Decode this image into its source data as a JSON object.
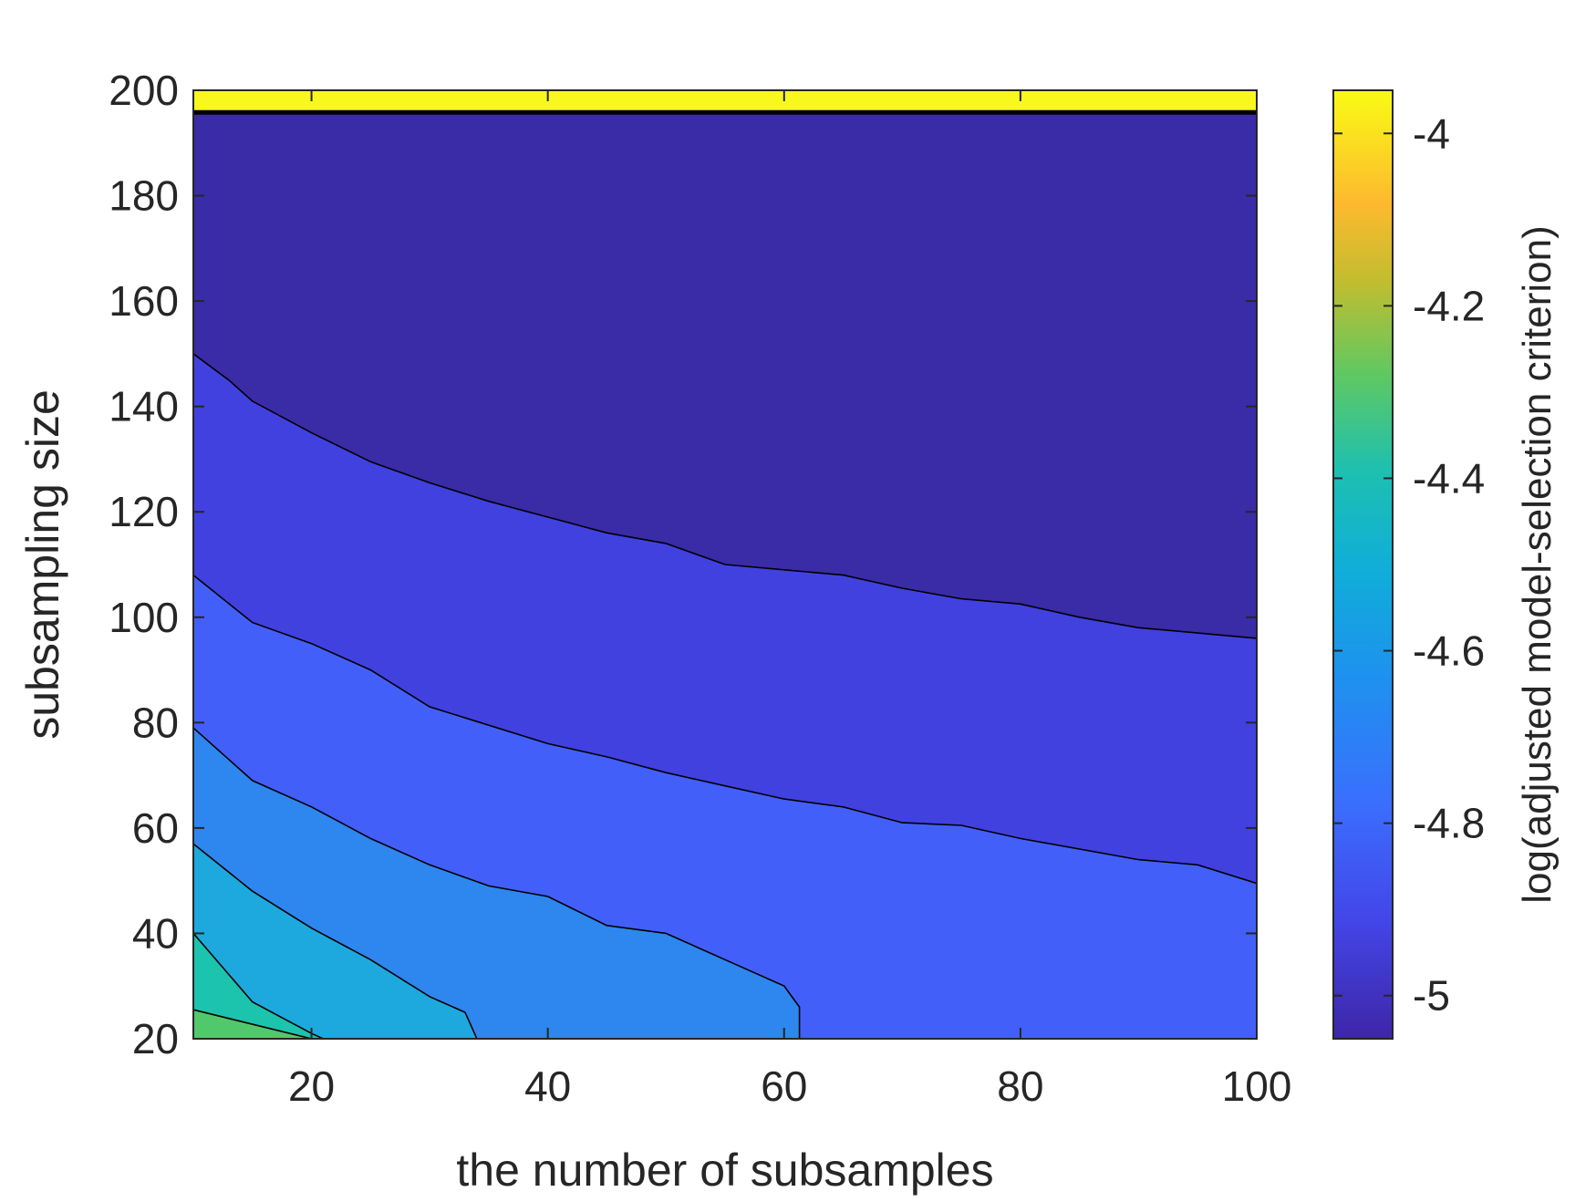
{
  "chart_data": {
    "type": "contour",
    "title": "",
    "xlabel": "the number of subsamples",
    "ylabel": "subsampling size",
    "colorbar_label": "log(adjusted model-selection criterion)",
    "xlim": [
      10,
      100
    ],
    "ylim": [
      20,
      200
    ],
    "clim": [
      -5.05,
      -3.95
    ],
    "x_ticks": [
      20,
      40,
      60,
      80,
      100
    ],
    "x_tick_labels": [
      "20",
      "40",
      "60",
      "80",
      "100"
    ],
    "y_ticks": [
      20,
      40,
      60,
      80,
      100,
      120,
      140,
      160,
      180,
      200
    ],
    "y_tick_labels": [
      "20",
      "40",
      "60",
      "80",
      "100",
      "120",
      "140",
      "160",
      "180",
      "200"
    ],
    "c_ticks": [
      -5,
      -4.8,
      -4.6,
      -4.4,
      -4.2,
      -4
    ],
    "c_tick_labels": [
      "-5",
      "-4.8",
      "-4.6",
      "-4.4",
      "-4.2",
      "-4"
    ],
    "colormap": "parula",
    "grid": false,
    "bands": [
      {
        "level": -5.05,
        "color": "#3a2ba6"
      },
      {
        "level": -4.95,
        "color": "#4141e0"
      },
      {
        "level": -4.85,
        "color": "#435ffa"
      },
      {
        "level": -4.75,
        "color": "#2e86ef"
      },
      {
        "level": -4.65,
        "color": "#1ea9de"
      },
      {
        "level": -4.55,
        "color": "#1cc3ad"
      },
      {
        "level": -4.45,
        "color": "#52c86c"
      },
      {
        "level": -3.95,
        "color": "#f9f81e"
      }
    ],
    "contour_lines": [
      {
        "x": [
          10,
          20
        ],
        "y": [
          25.5,
          20
        ]
      },
      {
        "x": [
          10,
          15,
          20,
          21
        ],
        "y": [
          40,
          27,
          21,
          20
        ]
      },
      {
        "x": [
          10,
          15,
          20,
          25,
          30,
          33,
          34
        ],
        "y": [
          57,
          48,
          41,
          35,
          28,
          25,
          20
        ]
      },
      {
        "x": [
          10,
          15,
          20,
          25,
          30,
          35,
          40,
          45,
          50,
          55,
          60,
          61.3,
          61.3
        ],
        "y": [
          79,
          69,
          64,
          58,
          53,
          49,
          47,
          41.5,
          40,
          35,
          30,
          26,
          20
        ]
      },
      {
        "x": [
          10,
          15,
          20,
          25,
          30,
          35,
          40,
          45,
          50,
          55,
          60,
          65,
          70,
          75,
          80,
          90,
          95,
          100
        ],
        "y": [
          108,
          99,
          95,
          90,
          83,
          79.5,
          76,
          73.5,
          70.5,
          68,
          65.5,
          64,
          61,
          60.5,
          58,
          54,
          53,
          49.5
        ]
      },
      {
        "x": [
          10,
          13,
          15,
          20,
          25,
          30,
          35,
          40,
          45,
          50,
          55,
          60,
          65,
          70,
          75,
          80,
          85,
          90,
          95,
          100
        ],
        "y": [
          150,
          145,
          141,
          135,
          129.5,
          125.5,
          122,
          119,
          116,
          114,
          110,
          109,
          108,
          105.5,
          103.5,
          102.5,
          100,
          98,
          97,
          96
        ]
      },
      {
        "x": [
          10,
          100
        ],
        "y": [
          195.8,
          195.8
        ]
      }
    ]
  }
}
